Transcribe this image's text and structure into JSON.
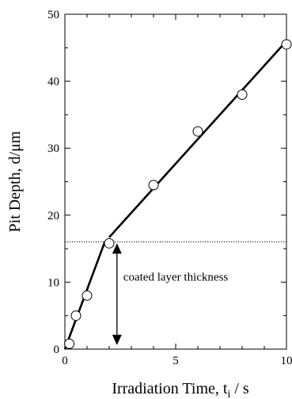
{
  "chart_data": {
    "type": "scatter",
    "title": "",
    "xlabel_main": "Irradiation Time, t",
    "xlabel_sub": "i",
    "xlabel_tail": " / s",
    "ylabel": "Pit Depth, d/μm",
    "xlim": [
      0,
      10
    ],
    "ylim": [
      0,
      50
    ],
    "x_ticks": [
      0,
      5,
      10
    ],
    "y_ticks": [
      0,
      10,
      20,
      30,
      40,
      50
    ],
    "grid": false,
    "points": [
      {
        "x": 0.2,
        "y": 0.8
      },
      {
        "x": 0.5,
        "y": 5.0
      },
      {
        "x": 1.0,
        "y": 8.0
      },
      {
        "x": 2.0,
        "y": 15.8
      },
      {
        "x": 4.0,
        "y": 24.5
      },
      {
        "x": 6.0,
        "y": 32.5
      },
      {
        "x": 8.0,
        "y": 38.0
      },
      {
        "x": 10.0,
        "y": 45.5
      }
    ],
    "fit_lines": [
      {
        "x": [
          0.0,
          1.8
        ],
        "y": [
          0.0,
          16.0
        ]
      },
      {
        "x": [
          2.0,
          10.0
        ],
        "y": [
          16.7,
          46.0
        ]
      }
    ],
    "threshold_line": {
      "y": 16.0
    },
    "annotation": {
      "text": "coated layer thickness",
      "arrow_x": 2.35,
      "arrow_y": [
        15.8,
        0.6
      ]
    }
  }
}
